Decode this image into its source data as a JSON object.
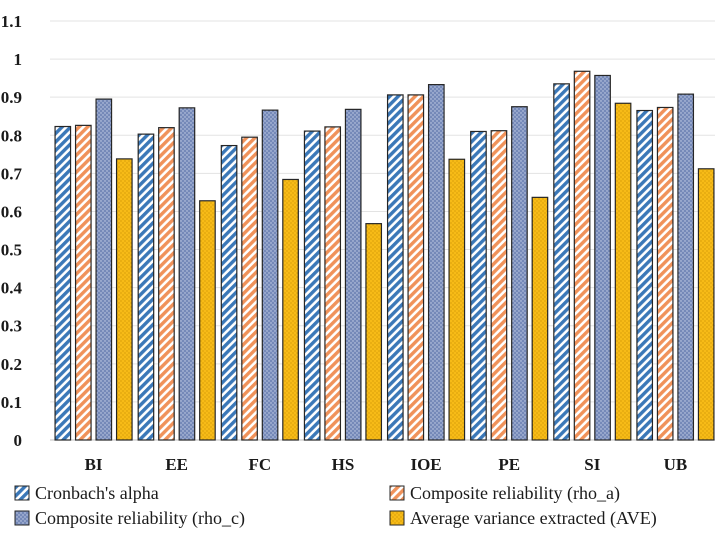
{
  "chart_data": {
    "type": "bar",
    "categories": [
      "BI",
      "EE",
      "FC",
      "HS",
      "IOE",
      "PE",
      "SI",
      "UB"
    ],
    "series": [
      {
        "name": "Cronbach's alpha",
        "values": [
          0.823,
          0.803,
          0.773,
          0.811,
          0.906,
          0.81,
          0.935,
          0.865
        ],
        "color": "#3b78b8",
        "pattern": "diagonal-stripes"
      },
      {
        "name": "Composite reliability (rho_a)",
        "values": [
          0.826,
          0.82,
          0.795,
          0.822,
          0.906,
          0.812,
          0.968,
          0.873
        ],
        "color": "#f0925a",
        "pattern": "diagonal-stripes"
      },
      {
        "name": "Composite reliability (rho_c)",
        "values": [
          0.895,
          0.872,
          0.866,
          0.868,
          0.933,
          0.875,
          0.957,
          0.908
        ],
        "color": "#7589b8",
        "pattern": "dotted"
      },
      {
        "name": "Average variance extracted (AVE)",
        "values": [
          0.738,
          0.628,
          0.684,
          0.568,
          0.737,
          0.637,
          0.884,
          0.712
        ],
        "color": "#f7bb17",
        "pattern": "dotted"
      }
    ],
    "title": "",
    "xlabel": "",
    "ylabel": "",
    "ylim": [
      0,
      1.1
    ],
    "yticks": [
      "0",
      "0.1",
      "0.2",
      "0.3",
      "0.4",
      "0.5",
      "0.6",
      "0.7",
      "0.8",
      "0.9",
      "1",
      "1.1"
    ],
    "grid": true,
    "legend_position": "bottom"
  }
}
